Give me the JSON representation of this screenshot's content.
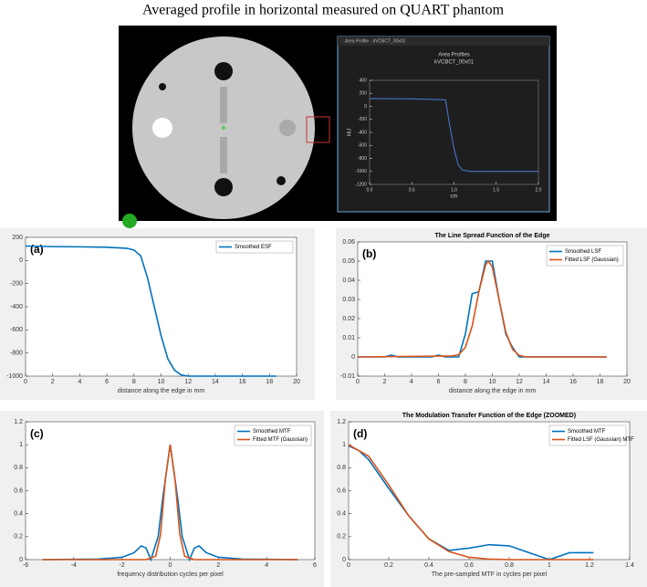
{
  "title": "Averaged profile in horizontal measured on QUART phantom",
  "image": {
    "window_title": "Area Profile - kVCBCT_00x01"
  },
  "chart_data": [
    {
      "type": "line",
      "title": "Area Profiles",
      "subtitle": "kVCBCT_00x01",
      "xlabel": "cm",
      "ylabel": "HU",
      "xlim": [
        0,
        2
      ],
      "xticks": [
        {
          "value": 0,
          "label": "0.0"
        },
        0.5,
        {
          "value": 1,
          "label": "1.0"
        },
        1.5,
        {
          "value": 2,
          "label": "2.0"
        }
      ],
      "ylim": [
        -1200,
        400
      ],
      "yticks": [
        -1200,
        -1000,
        -800,
        -600,
        -400,
        -200,
        0,
        200,
        400
      ],
      "series": [
        {
          "color": "#4b7bd8",
          "x": [
            0,
            0.5,
            0.9,
            0.95,
            1.0,
            1.05,
            1.1,
            1.2,
            2.0
          ],
          "values": [
            120,
            115,
            100,
            -300,
            -650,
            -900,
            -980,
            -1000,
            -1000
          ]
        }
      ]
    },
    {
      "type": "line",
      "label": "(a)",
      "xlabel": "distance along the edge in mm",
      "xlim": [
        0,
        20
      ],
      "xticks": [
        0,
        2,
        4,
        6,
        8,
        10,
        12,
        14,
        16,
        18,
        20
      ],
      "ylim": [
        -1000,
        200
      ],
      "yticks": [
        -1000,
        -800,
        -600,
        -400,
        -200,
        0,
        200
      ],
      "legend": "upper right",
      "series": [
        {
          "name": "Smoothed ESF",
          "color": "#0072bd",
          "x": [
            0,
            2,
            4,
            6,
            7.5,
            8,
            8.5,
            9,
            9.5,
            10,
            10.5,
            11,
            11.5,
            12,
            18.5
          ],
          "values": [
            125,
            120,
            118,
            115,
            105,
            90,
            40,
            -150,
            -400,
            -650,
            -850,
            -950,
            -990,
            -1000,
            -1000
          ]
        }
      ]
    },
    {
      "type": "line",
      "label": "(b)",
      "title": "The Line Spread Function of the Edge",
      "xlabel": "distance along the edge in mm",
      "xlim": [
        0,
        20
      ],
      "xticks": [
        0,
        2,
        4,
        6,
        8,
        10,
        12,
        14,
        16,
        18,
        20
      ],
      "ylim": [
        -0.01,
        0.06
      ],
      "yticks": [
        -0.01,
        0,
        0.01,
        0.02,
        0.03,
        0.04,
        0.05,
        0.06
      ],
      "legend": "upper right",
      "series": [
        {
          "name": "Smoothed LSF",
          "color": "#0072bd",
          "x": [
            0,
            2,
            2.5,
            3,
            5.5,
            6,
            6.5,
            7.5,
            8,
            8.5,
            9,
            9.5,
            10,
            10.5,
            11,
            11.5,
            12,
            18.5
          ],
          "values": [
            0,
            0,
            0.001,
            0,
            0,
            0.001,
            0,
            0,
            0.012,
            0.033,
            0.034,
            0.05,
            0.05,
            0.03,
            0.012,
            0.005,
            0,
            0
          ]
        },
        {
          "name": "Fitted LSF (Gaussian)",
          "color": "#d95319",
          "x": [
            0,
            7,
            7.5,
            8,
            8.5,
            9,
            9.5,
            9.7,
            10,
            10.5,
            11,
            11.5,
            12,
            12.5,
            18.5
          ],
          "values": [
            0,
            0.0005,
            0.0012,
            0.005,
            0.016,
            0.034,
            0.048,
            0.05,
            0.047,
            0.03,
            0.013,
            0.004,
            0.0008,
            0,
            0
          ]
        }
      ]
    },
    {
      "type": "line",
      "label": "(c)",
      "xlabel": "frequency distribution cycles per pixel",
      "xlim": [
        -6,
        6
      ],
      "xticks": [
        -6,
        -4,
        -2,
        0,
        2,
        4,
        6
      ],
      "ylim": [
        0,
        1.2
      ],
      "yticks": [
        0,
        0.2,
        0.4,
        0.6,
        0.8,
        1,
        1.2
      ],
      "legend": "upper right",
      "series": [
        {
          "name": "Smoothed MTF",
          "color": "#0072bd",
          "x": [
            -5.3,
            -3,
            -2,
            -1.5,
            -1.2,
            -1,
            -0.8,
            -0.5,
            -0.3,
            0,
            0.3,
            0.5,
            0.8,
            1,
            1.2,
            1.5,
            2,
            3,
            5.3
          ],
          "values": [
            0,
            0.005,
            0.02,
            0.06,
            0.12,
            0.1,
            0,
            0.2,
            0.55,
            1,
            0.55,
            0.2,
            0,
            0.1,
            0.12,
            0.06,
            0.02,
            0.005,
            0
          ]
        },
        {
          "name": "Fitted MTF (Gaussian)",
          "color": "#d95319",
          "x": [
            -5.3,
            -1,
            -0.6,
            -0.4,
            -0.2,
            0,
            0.2,
            0.4,
            0.6,
            1,
            5.3
          ],
          "values": [
            0,
            0,
            0.03,
            0.22,
            0.7,
            1,
            0.7,
            0.22,
            0.03,
            0,
            0
          ]
        }
      ]
    },
    {
      "type": "line",
      "label": "(d)",
      "title": "The Modulation Transfer Function of the Edge (ZOOMED)",
      "xlabel": "The pre-sampled MTF in cycles per pixel",
      "xlim": [
        0,
        1.4
      ],
      "xticks": [
        0,
        0.2,
        0.4,
        0.6,
        0.8,
        1,
        1.2,
        1.4
      ],
      "ylim": [
        0,
        1.2
      ],
      "yticks": [
        0,
        0.2,
        0.4,
        0.6,
        0.8,
        1,
        1.2
      ],
      "legend": "upper right",
      "series": [
        {
          "name": "Smoothed MTF",
          "color": "#0072bd",
          "x": [
            0,
            0.05,
            0.1,
            0.2,
            0.3,
            0.4,
            0.5,
            0.6,
            0.7,
            0.8,
            0.9,
            1,
            1.1,
            1.22
          ],
          "values": [
            0.99,
            0.95,
            0.87,
            0.62,
            0.38,
            0.18,
            0.08,
            0.1,
            0.13,
            0.12,
            0.06,
            0,
            0.06,
            0.06
          ]
        },
        {
          "name": "Fitted LSF (Gaussian) MTF",
          "color": "#d95319",
          "x": [
            0,
            0.1,
            0.2,
            0.3,
            0.4,
            0.5,
            0.6,
            0.7,
            0.8,
            0.9,
            1,
            1.22
          ],
          "values": [
            1,
            0.9,
            0.65,
            0.38,
            0.18,
            0.07,
            0.02,
            0.005,
            0,
            0,
            0,
            0
          ]
        }
      ]
    }
  ]
}
